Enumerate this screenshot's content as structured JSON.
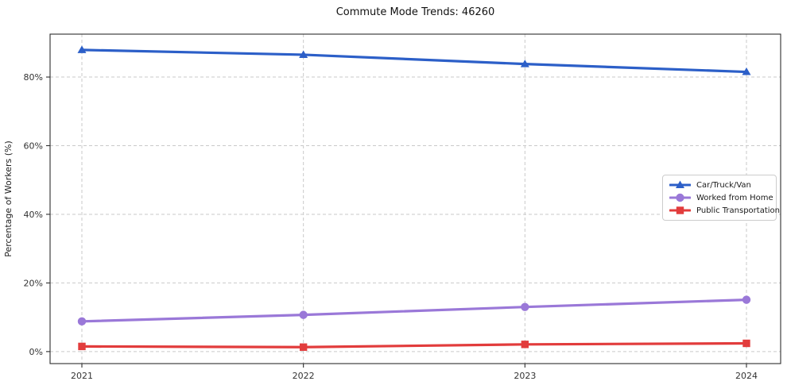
{
  "title": "Commute Mode Trends: 46260",
  "chart_data": {
    "type": "line",
    "x": [
      "2021",
      "2022",
      "2023",
      "2024"
    ],
    "series": [
      {
        "name": "Car/Truck/Van",
        "values": [
          87.9,
          86.5,
          83.8,
          81.5
        ],
        "color": "#2c5fc8",
        "marker": "triangle"
      },
      {
        "name": "Worked from Home",
        "values": [
          8.8,
          10.7,
          13.0,
          15.1
        ],
        "color": "#9a78d8",
        "marker": "circle"
      },
      {
        "name": "Public Transportation",
        "values": [
          1.5,
          1.3,
          2.1,
          2.4
        ],
        "color": "#e23c3c",
        "marker": "square"
      }
    ],
    "xlabel": "",
    "ylabel": "Percentage of Workers (%)",
    "yticks": [
      0,
      20,
      40,
      60,
      80
    ],
    "ytick_labels": [
      "0%",
      "20%",
      "40%",
      "60%",
      "80%"
    ],
    "ylim": [
      -3.5,
      92.5
    ],
    "grid": true,
    "grid_style": "dashed",
    "grid_color": "#c9c9c9",
    "axis_color": "#2d2d2d",
    "tick_label_color": "#333333",
    "legend_position": "center-right",
    "background_color": "#ffffff"
  }
}
